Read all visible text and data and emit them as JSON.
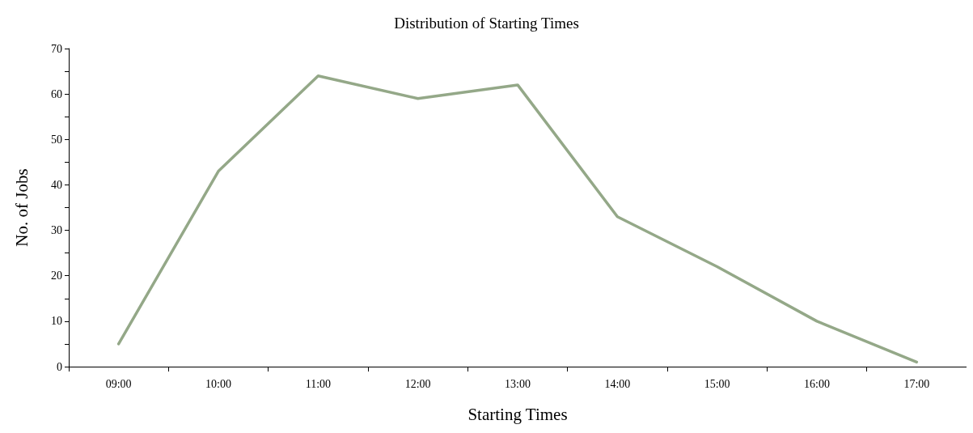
{
  "chart_data": {
    "type": "line",
    "title": "Distribution of Starting Times",
    "xlabel": "Starting Times",
    "ylabel": "No. of Jobs",
    "categories": [
      "09:00",
      "10:00",
      "11:00",
      "12:00",
      "13:00",
      "14:00",
      "15:00",
      "16:00",
      "17:00"
    ],
    "series": [
      {
        "color": "#94a888",
        "values": [
          5,
          43,
          64,
          59,
          62,
          33,
          22,
          10,
          1
        ]
      }
    ],
    "ylim": [
      0,
      70
    ],
    "yticks": [
      0,
      {
        "value": 5,
        "label": null
      },
      10,
      {
        "value": 15,
        "label": null
      },
      20,
      {
        "value": 25,
        "label": null
      },
      30,
      {
        "value": 35,
        "label": null
      },
      40,
      {
        "value": 45,
        "label": null
      },
      50,
      {
        "value": 55,
        "label": null
      },
      60,
      {
        "value": 65,
        "label": null
      },
      70
    ],
    "grid": false,
    "marker": "none",
    "line_style": "solid"
  }
}
